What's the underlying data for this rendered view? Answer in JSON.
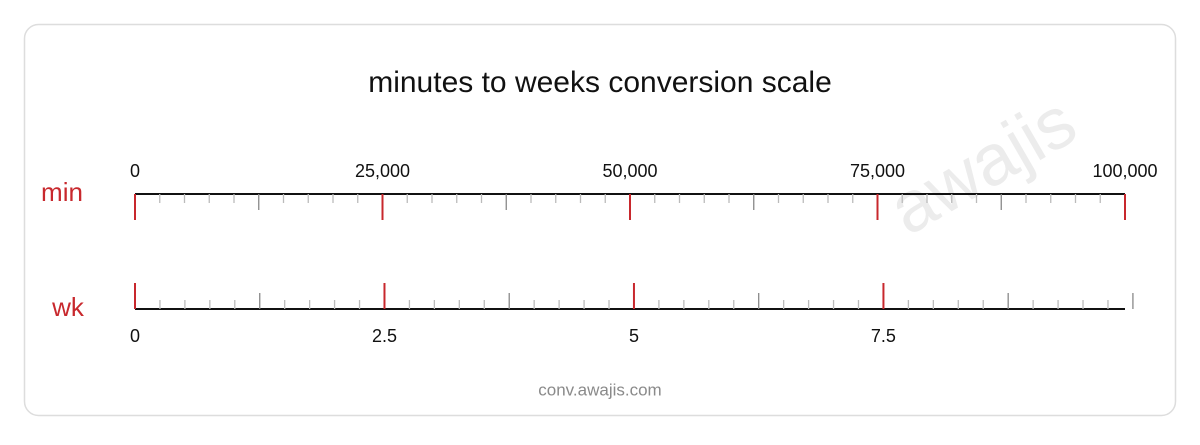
{
  "chart_data": {
    "type": "scale",
    "title": "minutes to weeks conversion scale",
    "axes": [
      {
        "label": "min",
        "side": "top",
        "lim": [
          0,
          100000
        ],
        "ticks": [
          0,
          {
            "value": 25000,
            "label": "25,000"
          },
          {
            "value": 50000,
            "label": "50,000"
          },
          {
            "value": 75000,
            "label": "75,000"
          },
          {
            "value": 100000,
            "label": "100,000"
          }
        ],
        "minor_step": 2500,
        "mid_step": 12500
      },
      {
        "label": "wk",
        "side": "bottom",
        "lim": [
          0,
          9.920634920634921
        ],
        "ticks": [
          0,
          2.5,
          5,
          7.5
        ],
        "minor_step": 0.25,
        "mid_step": 1.25
      }
    ],
    "major_color": "#c8282d",
    "label_color": "#c8282d"
  },
  "watermark": "awajis",
  "source": "conv.awajis.com"
}
